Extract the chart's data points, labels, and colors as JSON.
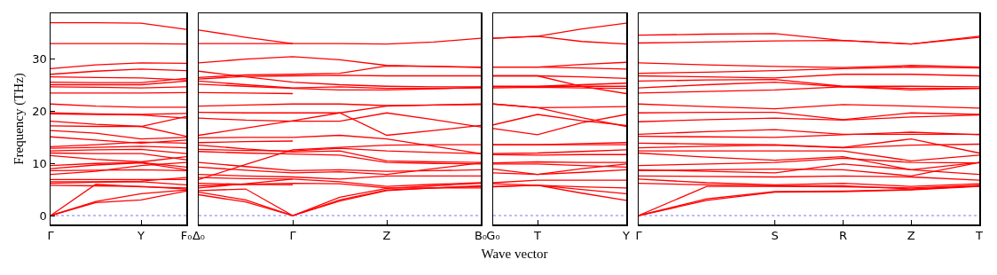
{
  "chart_data": [
    {
      "type": "line",
      "ylabel": "Frequency (THz)",
      "color": "#ff0000",
      "categories": [
        "Γ",
        null,
        "Y",
        "F₀"
      ],
      "ylim": [
        -1.7,
        38.8
      ],
      "yticks": [
        0,
        10,
        20,
        30
      ],
      "ref_lines": [
        {
          "axis": "y",
          "value": 0,
          "color": "#5555ff",
          "line_style": "dotted"
        }
      ],
      "series": [
        {
          "values": [
            37.0,
            37.0,
            36.9,
            35.7
          ]
        },
        {
          "values": [
            33.0,
            33.0,
            33.0,
            32.9
          ]
        },
        {
          "values": [
            28.2,
            28.9,
            29.3,
            29.2
          ]
        },
        {
          "values": [
            27.1,
            27.7,
            28.1,
            27.8
          ]
        },
        {
          "values": [
            26.6,
            26.5,
            26.4,
            26.0
          ]
        },
        {
          "values": [
            25.6,
            25.5,
            25.5,
            26.3
          ]
        },
        {
          "values": [
            25.1,
            25.1,
            25.1,
            25.8
          ]
        },
        {
          "values": [
            24.7,
            24.6,
            24.5,
            24.7
          ]
        },
        {
          "values": [
            23.5,
            23.5,
            23.5,
            23.6
          ]
        },
        {
          "values": [
            21.4,
            21.0,
            20.8,
            20.8
          ]
        },
        {
          "values": [
            19.7,
            19.5,
            19.4,
            19.6
          ]
        },
        {
          "values": [
            19.5,
            19.4,
            19.3,
            18.7
          ]
        },
        {
          "values": [
            18.1,
            17.5,
            17.1,
            19.0
          ]
        },
        {
          "values": [
            17.2,
            17.1,
            17.1,
            15.2
          ]
        },
        {
          "values": [
            16.3,
            15.8,
            14.7,
            15.0
          ]
        },
        {
          "values": [
            15.1,
            14.5,
            13.9,
            14.5
          ]
        },
        {
          "values": [
            13.2,
            13.6,
            14.1,
            13.9
          ]
        },
        {
          "values": [
            12.9,
            13.1,
            13.3,
            13.0
          ]
        },
        {
          "values": [
            12.4,
            12.6,
            12.7,
            11.9
          ]
        },
        {
          "values": [
            12.0,
            11.9,
            11.9,
            10.7
          ]
        },
        {
          "values": [
            11.5,
            10.8,
            10.3,
            11.3
          ]
        },
        {
          "values": [
            9.6,
            10.0,
            10.2,
            9.3
          ]
        },
        {
          "values": [
            9.0,
            9.7,
            10.1,
            8.8
          ]
        },
        {
          "values": [
            8.6,
            8.7,
            8.8,
            8.6
          ]
        },
        {
          "values": [
            7.9,
            8.5,
            9.6,
            10.2
          ]
        },
        {
          "values": [
            6.9,
            6.9,
            6.9,
            6.9
          ]
        },
        {
          "values": [
            6.5,
            6.5,
            6.6,
            7.3
          ]
        },
        {
          "values": [
            6.2,
            6.4,
            6.5,
            5.9
          ]
        },
        {
          "values": [
            5.8,
            5.7,
            5.6,
            5.1
          ]
        },
        {
          "values": [
            0,
            6.0,
            5.5,
            5.3
          ]
        },
        {
          "values": [
            0,
            2.7,
            4.2,
            4.9
          ]
        },
        {
          "values": [
            0,
            2.5,
            3.0,
            4.7
          ]
        }
      ]
    },
    {
      "type": "line",
      "color": "#ff0000",
      "categories": [
        "Δ₀",
        null,
        "Γ",
        null,
        "Z",
        null,
        "B₀"
      ],
      "ylim": [
        -1.7,
        38.8
      ],
      "yticks": [
        0,
        10,
        20,
        30
      ],
      "tick_labels": "x",
      "ref_lines": [
        {
          "axis": "y",
          "value": 0,
          "color": "#5555ff",
          "line_style": "dotted"
        }
      ],
      "series": [
        {
          "values": [
            35.6,
            34.2,
            33.0,
            null,
            null,
            null,
            null
          ]
        },
        {
          "values": [
            33.0,
            33.0,
            33.0,
            33.0,
            32.9,
            33.3,
            34.0
          ]
        },
        {
          "values": [
            29.3,
            30.0,
            30.5,
            29.9,
            28.8,
            28.6,
            28.5
          ]
        },
        {
          "values": [
            26.5,
            27.0,
            27.1,
            27.3,
            28.7,
            28.6,
            28.4
          ]
        },
        {
          "values": [
            26.2,
            26.7,
            26.8,
            26.9,
            26.8,
            26.8,
            26.8
          ]
        },
        {
          "values": [
            27.7,
            26.6,
            25.6,
            25.1,
            24.8,
            24.7,
            24.7
          ]
        },
        {
          "values": [
            25.8,
            25.1,
            24.5,
            24.7,
            24.4,
            24.4,
            24.5
          ]
        },
        {
          "values": [
            25.2,
            24.8,
            24.4,
            24.1,
            24.1,
            24.3,
            24.6
          ]
        },
        {
          "values": [
            23.6,
            23.5,
            23.4,
            null,
            null,
            null,
            null
          ]
        },
        {
          "values": [
            21.0,
            21.2,
            21.4,
            21.4,
            21.1,
            21.2,
            21.4
          ]
        },
        {
          "values": [
            19.8,
            19.7,
            19.7,
            19.7,
            21.0,
            21.2,
            21.3
          ]
        },
        {
          "values": [
            18.7,
            18.3,
            18.1,
            18.1,
            19.7,
            18.4,
            17.0
          ]
        },
        {
          "values": [
            15.4,
            16.8,
            18.2,
            19.7,
            15.4,
            16.3,
            17.3
          ]
        },
        {
          "values": [
            14.9,
            15.0,
            15.0,
            15.4,
            14.7,
            13.3,
            11.9
          ]
        },
        {
          "values": [
            14.0,
            14.2,
            14.3,
            null,
            null,
            null,
            null
          ]
        },
        {
          "values": [
            6.9,
            9.8,
            12.6,
            13.1,
            13.5,
            13.6,
            13.6
          ]
        },
        {
          "values": [
            12.7,
            12.5,
            12.4,
            12.9,
            12.4,
            12.1,
            11.9
          ]
        },
        {
          "values": [
            13.5,
            12.8,
            12.2,
            12.4,
            10.5,
            10.3,
            10.2
          ]
        },
        {
          "values": [
            12.3,
            12.0,
            11.8,
            11.6,
            10.2,
            10.0,
            9.9
          ]
        },
        {
          "values": [
            10.2,
            9.4,
            8.6,
            8.8,
            8.5,
            8.6,
            8.8
          ]
        },
        {
          "values": [
            9.3,
            8.7,
            8.2,
            8.4,
            7.9,
            9.0,
            10.1
          ]
        },
        {
          "values": [
            7.9,
            7.6,
            7.4,
            7.0,
            7.6,
            7.6,
            7.6
          ]
        },
        {
          "values": [
            7.3,
            7.1,
            7.0,
            6.5,
            5.6,
            6.0,
            6.3
          ]
        },
        {
          "values": [
            5.3,
            6.1,
            7.0,
            null,
            null,
            null,
            null
          ]
        },
        {
          "values": [
            5.7,
            6.0,
            6.2,
            6.1,
            5.3,
            5.3,
            5.3
          ]
        },
        {
          "values": [
            6.2,
            6.0,
            5.9,
            null,
            null,
            null,
            null
          ]
        },
        {
          "values": [
            4.8,
            5.1,
            0,
            3.5,
            5.2,
            5.7,
            6.2
          ]
        },
        {
          "values": [
            4.5,
            3.0,
            0,
            3.0,
            4.9,
            5.3,
            5.6
          ]
        },
        {
          "values": [
            4.0,
            2.6,
            0,
            2.8,
            4.8,
            5.3,
            5.7
          ]
        }
      ]
    },
    {
      "type": "line",
      "xlabel": "Wave vector",
      "color": "#ff0000",
      "categories": [
        "G₀",
        "T",
        null,
        "Y"
      ],
      "ylim": [
        -1.7,
        38.8
      ],
      "yticks": [
        0,
        10,
        20,
        30
      ],
      "tick_labels": "x",
      "ref_lines": [
        {
          "axis": "y",
          "value": 0,
          "color": "#5555ff",
          "line_style": "dotted"
        }
      ],
      "series": [
        {
          "values": [
            34.0,
            34.4,
            35.8,
            36.9
          ]
        },
        {
          "values": [
            34.0,
            34.4,
            33.4,
            32.9
          ]
        },
        {
          "values": [
            28.5,
            28.5,
            29.0,
            29.4
          ]
        },
        {
          "values": [
            28.5,
            28.5,
            28.3,
            28.1
          ]
        },
        {
          "values": [
            26.8,
            26.8,
            26.6,
            26.3
          ]
        },
        {
          "values": [
            26.8,
            26.8,
            24.8,
            23.4
          ]
        },
        {
          "values": [
            24.8,
            24.8,
            25.1,
            25.4
          ]
        },
        {
          "values": [
            24.7,
            24.7,
            24.8,
            24.8
          ]
        },
        {
          "values": [
            24.5,
            24.6,
            24.5,
            24.4
          ]
        },
        {
          "values": [
            21.4,
            20.7,
            20.8,
            20.9
          ]
        },
        {
          "values": [
            21.4,
            20.7,
            18.8,
            17.1
          ]
        },
        {
          "values": [
            17.4,
            19.4,
            18.2,
            17.3
          ]
        },
        {
          "values": [
            16.7,
            15.5,
            17.8,
            19.4
          ]
        },
        {
          "values": [
            13.6,
            13.6,
            13.8,
            14.0
          ]
        },
        {
          "values": [
            13.6,
            13.6,
            13.6,
            13.6
          ]
        },
        {
          "values": [
            11.9,
            12.0,
            12.3,
            12.6
          ]
        },
        {
          "values": [
            11.7,
            11.6,
            11.7,
            11.7
          ]
        },
        {
          "values": [
            10.1,
            10.3,
            10.2,
            10.2
          ]
        },
        {
          "values": [
            9.9,
            9.9,
            9.6,
            9.3
          ]
        },
        {
          "values": [
            8.9,
            7.9,
            8.3,
            8.8
          ]
        },
        {
          "values": [
            8.2,
            7.9,
            9.0,
            9.9
          ]
        },
        {
          "values": [
            6.3,
            6.8,
            6.8,
            6.8
          ]
        },
        {
          "values": [
            6.1,
            5.8,
            5.5,
            5.3
          ]
        },
        {
          "values": [
            5.6,
            5.8,
            5.0,
            4.2
          ]
        },
        {
          "values": [
            5.5,
            5.8,
            4.3,
            2.9
          ]
        }
      ]
    },
    {
      "type": "line",
      "color": "#ff0000",
      "categories": [
        "Γ",
        null,
        "S",
        "R",
        "Z",
        "T"
      ],
      "ylim": [
        -1.7,
        38.8
      ],
      "yticks": [
        0,
        10,
        20,
        30
      ],
      "tick_labels": "x",
      "ref_lines": [
        {
          "axis": "y",
          "value": 0,
          "color": "#5555ff",
          "line_style": "dotted"
        }
      ],
      "series": [
        {
          "values": [
            34.6,
            34.8,
            34.9,
            33.6,
            32.9,
            34.4
          ]
        },
        {
          "values": [
            33.1,
            33.3,
            33.5,
            33.6,
            32.9,
            34.2
          ]
        },
        {
          "values": [
            29.3,
            28.9,
            28.6,
            28.4,
            28.8,
            28.5
          ]
        },
        {
          "values": [
            27.3,
            27.5,
            27.8,
            28.2,
            28.5,
            28.3
          ]
        },
        {
          "values": [
            26.8,
            26.6,
            26.4,
            27.1,
            27.1,
            26.8
          ]
        },
        {
          "values": [
            25.8,
            26.0,
            26.1,
            24.8,
            24.8,
            24.7
          ]
        },
        {
          "values": [
            24.5,
            25.1,
            25.6,
            24.7,
            24.4,
            24.4
          ]
        },
        {
          "values": [
            23.5,
            23.8,
            24.1,
            24.7,
            24.1,
            24.4
          ]
        },
        {
          "values": [
            21.4,
            20.9,
            20.5,
            21.3,
            21.0,
            20.6
          ]
        },
        {
          "values": [
            19.7,
            19.8,
            19.8,
            18.4,
            19.7,
            19.4
          ]
        },
        {
          "values": [
            18.0,
            18.4,
            18.7,
            18.3,
            18.9,
            19.3
          ]
        },
        {
          "values": [
            15.6,
            16.1,
            16.5,
            15.6,
            15.6,
            15.6
          ]
        },
        {
          "values": [
            15.2,
            15.1,
            15.0,
            15.5,
            16.0,
            15.5
          ]
        },
        {
          "values": [
            13.9,
            13.7,
            13.6,
            13.1,
            14.7,
            12.0
          ]
        },
        {
          "values": [
            13.0,
            13.3,
            13.5,
            13.0,
            13.5,
            13.7
          ]
        },
        {
          "values": [
            12.4,
            12.4,
            12.4,
            12.4,
            10.5,
            11.6
          ]
        },
        {
          "values": [
            12.0,
            11.2,
            10.6,
            11.3,
            8.8,
            10.2
          ]
        },
        {
          "values": [
            9.6,
            9.9,
            10.2,
            11.0,
            10.2,
            10.1
          ]
        },
        {
          "values": [
            8.8,
            8.5,
            8.2,
            9.9,
            8.8,
            7.9
          ]
        },
        {
          "values": [
            8.6,
            8.8,
            8.9,
            8.8,
            7.6,
            10.2
          ]
        },
        {
          "values": [
            7.6,
            7.5,
            7.4,
            7.6,
            7.4,
            6.8
          ]
        },
        {
          "values": [
            7.0,
            6.3,
            5.9,
            6.2,
            5.6,
            6.1
          ]
        },
        {
          "values": [
            6.2,
            5.9,
            5.7,
            5.7,
            5.1,
            5.7
          ]
        },
        {
          "values": [
            0,
            5.6,
            5.6,
            5.5,
            5.3,
            5.8
          ]
        },
        {
          "values": [
            0,
            3.2,
            4.6,
            4.7,
            5.0,
            5.7
          ]
        },
        {
          "values": [
            0,
            2.9,
            4.5,
            4.6,
            4.9,
            5.6
          ]
        }
      ]
    }
  ]
}
